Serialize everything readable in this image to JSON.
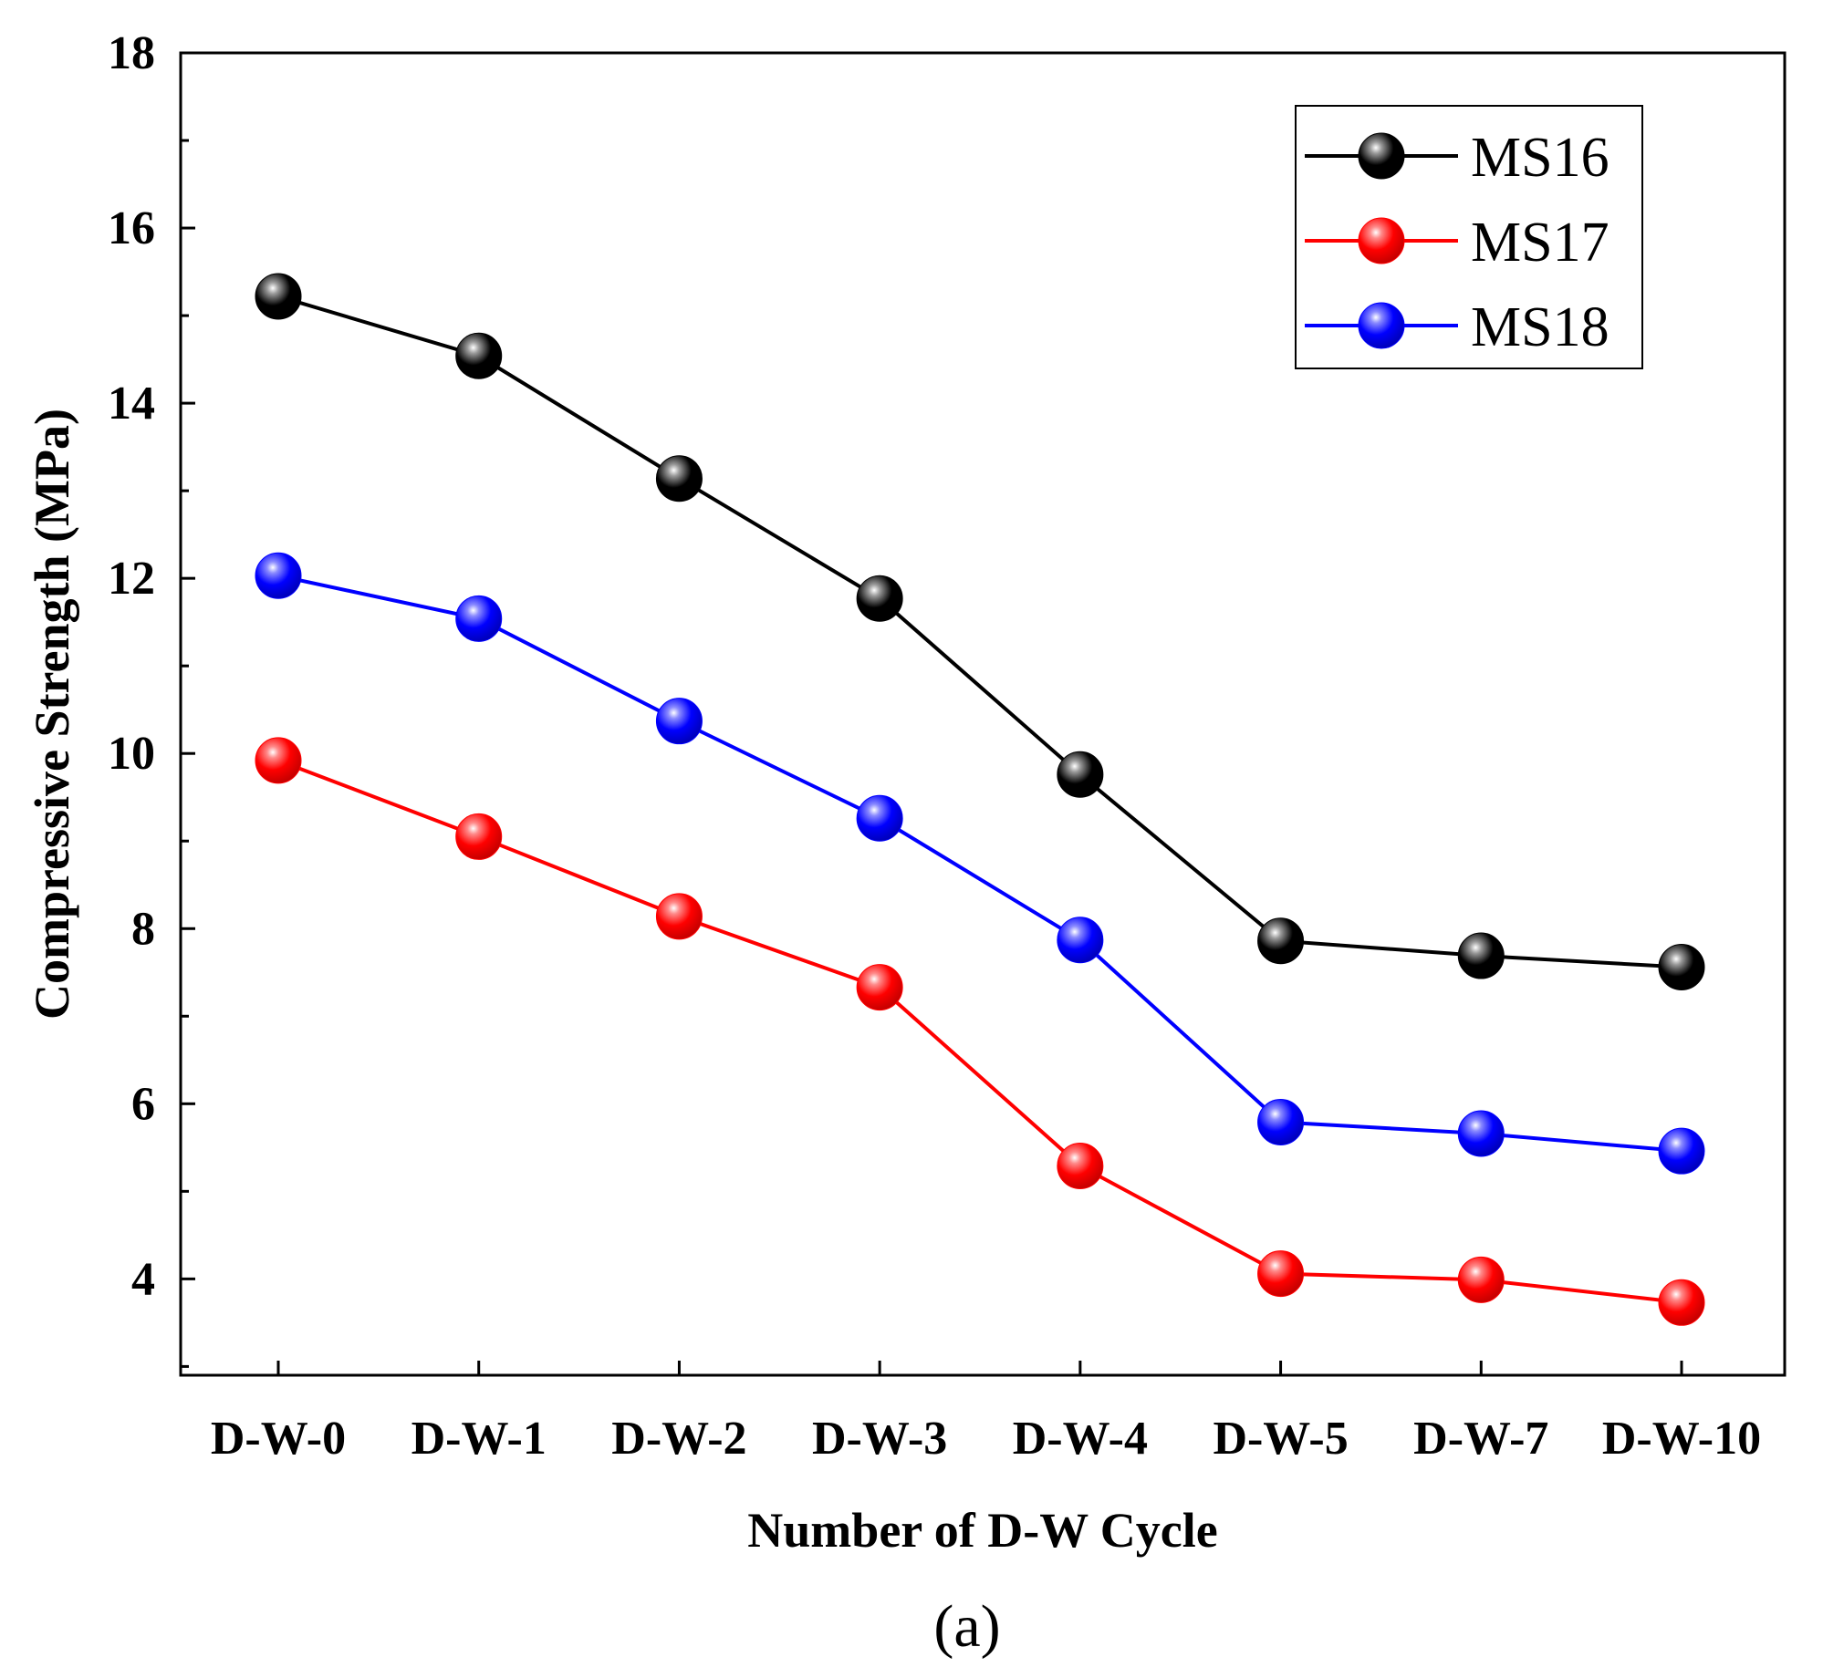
{
  "chart_data": {
    "type": "line",
    "xlabel": "Number of D-W Cycle",
    "ylabel": "Compressive Strength (MPa)",
    "caption": "(a)",
    "categories": [
      "D-W-0",
      "D-W-1",
      "D-W-2",
      "D-W-3",
      "D-W-4",
      "D-W-5",
      "D-W-7",
      "D-W-10"
    ],
    "ylim": [
      2.9,
      18
    ],
    "yticks": [
      4,
      6,
      8,
      10,
      12,
      14,
      16,
      18
    ],
    "yminor_step": 1,
    "grid": false,
    "legend_position": "top-right",
    "series": [
      {
        "name": "MS16",
        "color": "#000000",
        "values": [
          15.22,
          14.54,
          13.14,
          11.77,
          9.76,
          7.86,
          7.69,
          7.56
        ]
      },
      {
        "name": "MS17",
        "color": "#ff0000",
        "values": [
          9.92,
          9.05,
          8.14,
          7.33,
          5.29,
          4.06,
          3.99,
          3.73
        ]
      },
      {
        "name": "MS18",
        "color": "#0000ff",
        "values": [
          12.03,
          11.54,
          10.37,
          9.26,
          7.87,
          5.79,
          5.66,
          5.46
        ]
      }
    ]
  }
}
